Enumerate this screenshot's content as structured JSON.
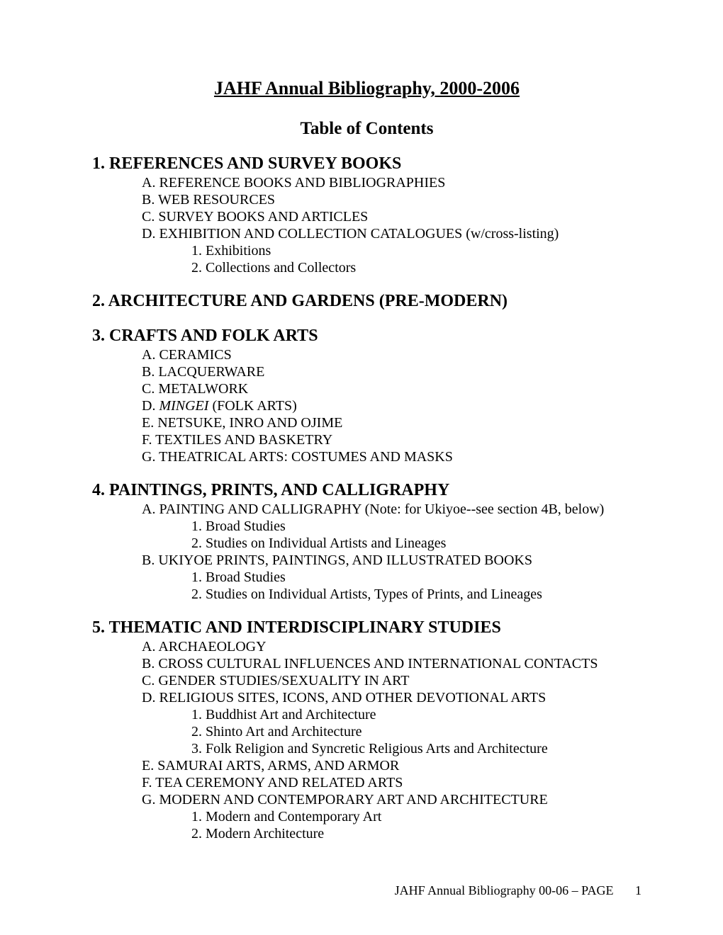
{
  "title": "JAHF Annual Bibliography, 2000-2006",
  "subtitle": "Table of Contents",
  "footer": {
    "label": "JAHF Annual Bibliography 00-06 – PAGE",
    "page": "1"
  },
  "s1": {
    "head": "1. REFERENCES AND SURVEY BOOKS",
    "a": "A. REFERENCE BOOKS AND BIBLIOGRAPHIES",
    "b": "B. WEB RESOURCES",
    "c": "C. SURVEY BOOKS AND ARTICLES",
    "d": "D. EXHIBITION AND COLLECTION CATALOGUES (w/cross-listing)",
    "d1": "1. Exhibitions",
    "d2": "2. Collections and Collectors"
  },
  "s2": {
    "head": "2. ARCHITECTURE AND GARDENS (PRE-MODERN)"
  },
  "s3": {
    "head": "3. CRAFTS AND FOLK ARTS",
    "a": "A. CERAMICS",
    "b": "B. LACQUERWARE",
    "c": "C. METALWORK",
    "d_pre": "D. ",
    "d_it": "MINGEI",
    "d_post": " (FOLK ARTS)",
    "e": "E. NETSUKE, INRO AND OJIME",
    "f": "F. TEXTILES AND BASKETRY",
    "g": "G. THEATRICAL ARTS: COSTUMES AND MASKS"
  },
  "s4": {
    "head": "4. PAINTINGS, PRINTS, AND CALLIGRAPHY",
    "a": "A. PAINTING AND CALLIGRAPHY (Note: for Ukiyoe--see section 4B, below)",
    "a1": "1. Broad Studies",
    "a2": "2. Studies on Individual Artists and Lineages",
    "b": "B. UKIYOE PRINTS, PAINTINGS, AND ILLUSTRATED BOOKS",
    "b1": "1. Broad Studies",
    "b2": "2. Studies on Individual Artists, Types of Prints, and Lineages"
  },
  "s5": {
    "head": "5. THEMATIC AND INTERDISCIPLINARY STUDIES",
    "a": "A. ARCHAEOLOGY",
    "b": "B. CROSS CULTURAL INFLUENCES AND INTERNATIONAL CONTACTS",
    "c": "C. GENDER STUDIES/SEXUALITY IN ART",
    "d": "D. RELIGIOUS SITES, ICONS, AND OTHER DEVOTIONAL ARTS",
    "d1": "1. Buddhist Art and Architecture",
    "d2": "2. Shinto Art and Architecture",
    "d3": "3. Folk Religion and Syncretic Religious Arts and Architecture",
    "e": "E. SAMURAI ARTS, ARMS, AND ARMOR",
    "f": "F. TEA CEREMONY AND RELATED ARTS",
    "g": "G. MODERN AND CONTEMPORARY ART AND ARCHITECTURE",
    "g1": "1. Modern and Contemporary Art",
    "g2": "2. Modern Architecture"
  }
}
